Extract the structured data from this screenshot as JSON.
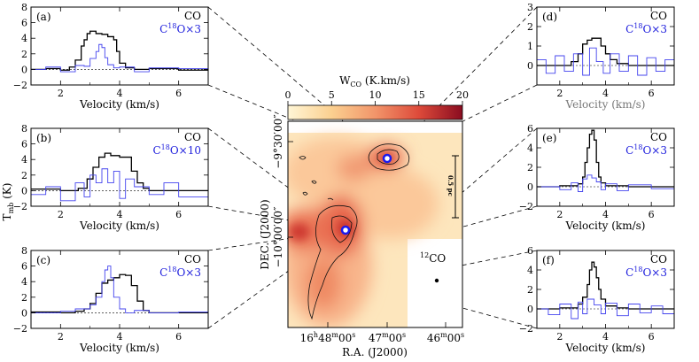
{
  "figure": {
    "ylabel": "T",
    "ylabel_sub": "mb",
    "ylabel_unit": " (K)",
    "xlabel": "Velocity (km/s)"
  },
  "chart_data": [
    {
      "type": "line",
      "panel": "(a)",
      "xlim": [
        1,
        7
      ],
      "ylim": [
        -2,
        8
      ],
      "xticks": [
        2,
        4,
        6
      ],
      "yticks": [
        -2,
        0,
        2,
        4,
        6,
        8
      ],
      "xlabel": "Velocity (km/s)",
      "legend": [
        "CO",
        "C18O×3"
      ],
      "series": [
        {
          "name": "CO",
          "color": "#000000",
          "x": [
            1.0,
            1.5,
            2.0,
            2.3,
            2.5,
            2.7,
            2.8,
            2.9,
            3.0,
            3.2,
            3.4,
            3.6,
            3.8,
            3.9,
            4.0,
            4.2,
            4.5,
            5.0,
            6.0,
            7.0
          ],
          "y": [
            0.0,
            0.1,
            -0.1,
            0.3,
            1.2,
            3.0,
            3.8,
            4.6,
            4.9,
            4.6,
            4.5,
            4.2,
            3.8,
            2.3,
            0.8,
            0.2,
            0.0,
            0.1,
            -0.1,
            0.0
          ]
        },
        {
          "name": "C18O×3",
          "color": "#4444ee",
          "x": [
            1.0,
            1.5,
            2.0,
            2.5,
            2.8,
            3.0,
            3.2,
            3.3,
            3.4,
            3.5,
            3.6,
            3.8,
            4.0,
            4.5,
            5.0,
            6.0,
            7.0
          ],
          "y": [
            0.0,
            0.3,
            -0.3,
            0.5,
            0.4,
            1.4,
            2.3,
            3.2,
            2.8,
            1.5,
            0.6,
            0.2,
            0.3,
            -0.3,
            0.2,
            0.1,
            0.0
          ]
        }
      ]
    },
    {
      "type": "line",
      "panel": "(b)",
      "xlim": [
        1,
        7
      ],
      "ylim": [
        -2,
        8
      ],
      "xticks": [
        2,
        4,
        6
      ],
      "yticks": [
        -2,
        0,
        2,
        4,
        6,
        8
      ],
      "xlabel": "Velocity (km/s)",
      "legend": [
        "CO",
        "C18O×10"
      ],
      "series": [
        {
          "name": "CO",
          "color": "#000000",
          "x": [
            1.0,
            2.0,
            2.6,
            2.9,
            3.1,
            3.3,
            3.5,
            3.7,
            4.0,
            4.2,
            4.4,
            4.6,
            4.8,
            5.0,
            6.0,
            7.0
          ],
          "y": [
            0.2,
            0.0,
            0.3,
            1.5,
            3.0,
            4.3,
            4.8,
            4.5,
            4.3,
            4.3,
            2.5,
            1.0,
            0.3,
            0.0,
            0.0,
            0.0
          ]
        },
        {
          "name": "C18O×10",
          "color": "#4444ee",
          "x": [
            1.0,
            1.5,
            2.0,
            2.5,
            2.8,
            3.0,
            3.2,
            3.4,
            3.6,
            3.8,
            4.0,
            4.2,
            4.5,
            5.0,
            5.5,
            6.0,
            7.0
          ],
          "y": [
            -0.5,
            0.5,
            -1.3,
            1.0,
            -0.8,
            2.0,
            1.0,
            2.8,
            1.0,
            2.5,
            -1.0,
            1.5,
            0.5,
            -0.5,
            1.0,
            -0.8,
            0.0
          ]
        }
      ]
    },
    {
      "type": "line",
      "panel": "(c)",
      "xlim": [
        1,
        7
      ],
      "ylim": [
        -2,
        8
      ],
      "xticks": [
        2,
        4,
        6
      ],
      "yticks": [
        -2,
        0,
        2,
        4,
        6,
        8
      ],
      "xlabel": "Velocity (km/s)",
      "legend": [
        "CO",
        "C18O×3"
      ],
      "series": [
        {
          "name": "CO",
          "color": "#000000",
          "x": [
            1.0,
            2.0,
            2.5,
            2.8,
            3.0,
            3.2,
            3.4,
            3.6,
            3.8,
            4.0,
            4.2,
            4.4,
            4.6,
            4.8,
            5.0,
            6.0,
            7.0
          ],
          "y": [
            0.1,
            0.0,
            0.2,
            0.5,
            1.2,
            2.5,
            3.8,
            4.2,
            4.5,
            4.9,
            4.8,
            3.5,
            1.5,
            0.3,
            0.0,
            0.0,
            0.0
          ]
        },
        {
          "name": "C18O×3",
          "color": "#4444ee",
          "x": [
            1.0,
            2.0,
            2.5,
            3.0,
            3.2,
            3.4,
            3.5,
            3.6,
            3.7,
            3.8,
            4.0,
            4.2,
            4.5,
            5.0,
            6.0,
            7.0
          ],
          "y": [
            0.0,
            0.2,
            0.5,
            1.0,
            2.0,
            4.0,
            5.5,
            6.0,
            4.5,
            2.0,
            0.5,
            0.0,
            0.3,
            0.0,
            0.1,
            0.0
          ]
        }
      ]
    },
    {
      "type": "line",
      "panel": "(d)",
      "xlim": [
        1,
        7
      ],
      "ylim": [
        -1,
        3
      ],
      "xticks": [
        2,
        4,
        6
      ],
      "yticks": [
        0,
        1,
        2,
        3
      ],
      "xlabel": "Velocity (km/s)",
      "legend": [
        "CO",
        "C18O×3"
      ],
      "series": [
        {
          "name": "CO",
          "color": "#000000",
          "x": [
            1.0,
            2.0,
            2.5,
            2.8,
            3.0,
            3.2,
            3.4,
            3.6,
            3.8,
            4.0,
            4.2,
            4.5,
            5.0,
            6.0,
            7.0
          ],
          "y": [
            0.0,
            0.0,
            0.2,
            0.6,
            1.1,
            1.3,
            1.4,
            1.4,
            1.0,
            0.6,
            0.3,
            0.1,
            0.0,
            0.0,
            0.0
          ]
        },
        {
          "name": "C18O×3",
          "color": "#4444ee",
          "x": [
            1.0,
            1.4,
            1.8,
            2.2,
            2.6,
            3.0,
            3.3,
            3.6,
            3.9,
            4.2,
            4.6,
            5.0,
            5.4,
            5.8,
            6.2,
            6.6,
            7.0
          ],
          "y": [
            0.3,
            -0.4,
            0.5,
            -0.3,
            0.6,
            -0.5,
            0.9,
            0.2,
            -0.4,
            0.6,
            -0.3,
            0.5,
            -0.5,
            0.4,
            -0.3,
            0.3,
            0.0
          ]
        }
      ]
    },
    {
      "type": "line",
      "panel": "(e)",
      "xlim": [
        1,
        7
      ],
      "ylim": [
        -2,
        6
      ],
      "xticks": [
        2,
        4,
        6
      ],
      "yticks": [
        -2,
        0,
        2,
        4,
        6
      ],
      "xlabel": "Velocity (km/s)",
      "legend": [
        "CO",
        "C18O×3"
      ],
      "series": [
        {
          "name": "CO",
          "color": "#000000",
          "x": [
            1.0,
            2.0,
            2.8,
            3.0,
            3.1,
            3.2,
            3.3,
            3.4,
            3.5,
            3.6,
            3.7,
            3.8,
            4.0,
            5.0,
            6.0,
            7.0
          ],
          "y": [
            0.0,
            0.1,
            0.3,
            1.0,
            2.5,
            4.0,
            5.4,
            5.8,
            4.8,
            2.5,
            1.0,
            0.4,
            0.1,
            0.0,
            0.0,
            0.0
          ]
        },
        {
          "name": "C18O×3",
          "color": "#4444ee",
          "x": [
            1.0,
            2.0,
            2.5,
            2.8,
            3.0,
            3.2,
            3.4,
            3.6,
            3.8,
            4.0,
            4.5,
            5.0,
            6.0,
            7.0
          ],
          "y": [
            0.0,
            -0.3,
            0.4,
            -0.5,
            0.8,
            1.2,
            0.9,
            0.5,
            -0.3,
            0.3,
            -0.4,
            0.2,
            -0.2,
            0.0
          ]
        }
      ]
    },
    {
      "type": "line",
      "panel": "(f)",
      "xlim": [
        1,
        7
      ],
      "ylim": [
        -2,
        6
      ],
      "xticks": [
        2,
        4,
        6
      ],
      "yticks": [
        -2,
        0,
        2,
        4,
        6
      ],
      "xlabel": "Velocity (km/s)",
      "legend": [
        "CO",
        "C18O×3"
      ],
      "series": [
        {
          "name": "CO",
          "color": "#000000",
          "x": [
            1.0,
            2.0,
            2.8,
            3.0,
            3.2,
            3.3,
            3.4,
            3.5,
            3.6,
            3.7,
            3.8,
            4.0,
            4.5,
            5.0,
            6.0,
            7.0
          ],
          "y": [
            0.0,
            0.1,
            0.5,
            1.2,
            2.5,
            4.0,
            4.8,
            4.3,
            3.2,
            2.0,
            1.0,
            0.3,
            0.1,
            0.0,
            0.0,
            0.0
          ]
        },
        {
          "name": "C18O×3",
          "color": "#4444ee",
          "x": [
            1.0,
            1.5,
            2.0,
            2.5,
            2.8,
            3.0,
            3.2,
            3.5,
            3.8,
            4.0,
            4.5,
            5.0,
            5.5,
            6.0,
            6.5,
            7.0
          ],
          "y": [
            0.0,
            -0.6,
            0.5,
            -1.0,
            0.7,
            -0.5,
            1.0,
            0.4,
            -0.5,
            0.6,
            -0.7,
            0.5,
            -0.4,
            0.3,
            -0.5,
            0.0
          ]
        }
      ]
    },
    {
      "type": "heatmap",
      "colorbar": {
        "label": "W",
        "label_sub": "CO",
        "label_unit": " (K.km/s)",
        "range": [
          0,
          20
        ],
        "ticks": [
          0,
          5,
          10,
          15,
          20
        ]
      },
      "xlabel": "R.A. (J2000)",
      "ylabel": "DEC. (J2000)",
      "ra_ticks": [
        "16h48m00s",
        "47m00s",
        "46m00s"
      ],
      "dec_ticks": [
        "−9°30′00″",
        "−10°00′00″"
      ],
      "scale_bar": "0.5 pc",
      "beam_label": "12CO",
      "panel_markers": [
        "(a)",
        "(b)",
        "(c)",
        "(d)",
        "(e)",
        "(f)"
      ],
      "colors": [
        "#fff6d6",
        "#fbd090",
        "#f2956a",
        "#dd4a3a",
        "#8a0c20"
      ]
    }
  ]
}
